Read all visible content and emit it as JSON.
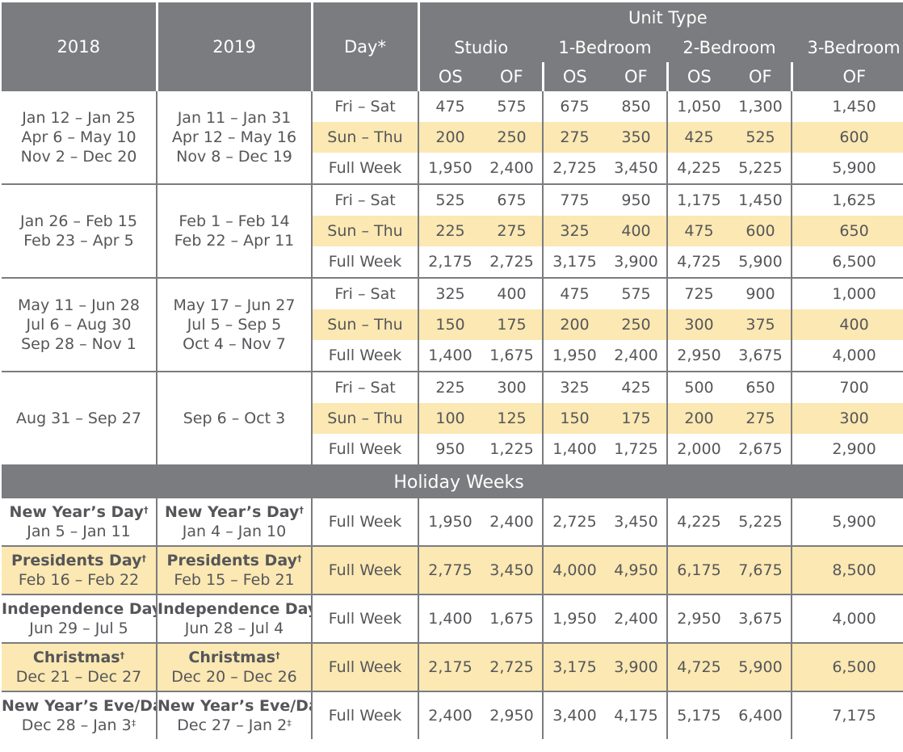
{
  "header": {
    "year_a": "2018",
    "year_b": "2019",
    "day": "Day*",
    "unit_type": "Unit Type",
    "units": [
      "Studio",
      "1-Bedroom",
      "2-Bedroom",
      "3-Bedroom"
    ],
    "sub": [
      "OS",
      "OF",
      "OS",
      "OF",
      "OS",
      "OF",
      "OF"
    ]
  },
  "seasons": [
    {
      "dates_2018": [
        "Jan 12 – Jan 25",
        "Apr 6 – May 10",
        "Nov 2 – Dec 20"
      ],
      "dates_2019": [
        "Jan 11 – Jan 31",
        "Apr 12 – May 16",
        "Nov 8 – Dec 19"
      ],
      "rows": [
        {
          "day": "Fri – Sat",
          "values": [
            "475",
            "575",
            "675",
            "850",
            "1,050",
            "1,300",
            "1,450"
          ]
        },
        {
          "day": "Sun – Thu",
          "values": [
            "200",
            "250",
            "275",
            "350",
            "425",
            "525",
            "600"
          ]
        },
        {
          "day": "Full Week",
          "values": [
            "1,950",
            "2,400",
            "2,725",
            "3,450",
            "4,225",
            "5,225",
            "5,900"
          ]
        }
      ]
    },
    {
      "dates_2018": [
        "Jan 26 – Feb 15",
        "Feb 23 – Apr 5"
      ],
      "dates_2019": [
        "Feb 1 – Feb 14",
        "Feb 22 – Apr 11"
      ],
      "rows": [
        {
          "day": "Fri – Sat",
          "values": [
            "525",
            "675",
            "775",
            "950",
            "1,175",
            "1,450",
            "1,625"
          ]
        },
        {
          "day": "Sun – Thu",
          "values": [
            "225",
            "275",
            "325",
            "400",
            "475",
            "600",
            "650"
          ]
        },
        {
          "day": "Full Week",
          "values": [
            "2,175",
            "2,725",
            "3,175",
            "3,900",
            "4,725",
            "5,900",
            "6,500"
          ]
        }
      ]
    },
    {
      "dates_2018": [
        "May 11 – Jun 28",
        "Jul 6 – Aug 30",
        "Sep 28 – Nov 1"
      ],
      "dates_2019": [
        "May 17 – Jun 27",
        "Jul 5 – Sep 5",
        "Oct 4 – Nov 7"
      ],
      "rows": [
        {
          "day": "Fri – Sat",
          "values": [
            "325",
            "400",
            "475",
            "575",
            "725",
            "900",
            "1,000"
          ]
        },
        {
          "day": "Sun – Thu",
          "values": [
            "150",
            "175",
            "200",
            "250",
            "300",
            "375",
            "400"
          ]
        },
        {
          "day": "Full Week",
          "values": [
            "1,400",
            "1,675",
            "1,950",
            "2,400",
            "2,950",
            "3,675",
            "4,000"
          ]
        }
      ]
    },
    {
      "dates_2018": [
        "Aug 31 – Sep 27"
      ],
      "dates_2019": [
        "Sep 6 – Oct 3"
      ],
      "rows": [
        {
          "day": "Fri – Sat",
          "values": [
            "225",
            "300",
            "325",
            "425",
            "500",
            "650",
            "700"
          ]
        },
        {
          "day": "Sun – Thu",
          "values": [
            "100",
            "125",
            "150",
            "175",
            "200",
            "275",
            "300"
          ]
        },
        {
          "day": "Full Week",
          "values": [
            "950",
            "1,225",
            "1,400",
            "1,725",
            "2,000",
            "2,675",
            "2,900"
          ]
        }
      ]
    }
  ],
  "holiday_title": "Holiday Weeks",
  "holidays": [
    {
      "name": "New Year’s Day",
      "mark": "†",
      "d2018": "Jan 5 – Jan 11",
      "d2018_mark": "",
      "d2019": "Jan 4 – Jan 10",
      "d2019_mark": "",
      "day": "Full Week",
      "values": [
        "1,950",
        "2,400",
        "2,725",
        "3,450",
        "4,225",
        "5,225",
        "5,900"
      ]
    },
    {
      "name": "Presidents Day",
      "mark": "†",
      "d2018": "Feb 16 – Feb 22",
      "d2018_mark": "",
      "d2019": "Feb 15 – Feb 21",
      "d2019_mark": "",
      "day": "Full Week",
      "values": [
        "2,775",
        "3,450",
        "4,000",
        "4,950",
        "6,175",
        "7,675",
        "8,500"
      ]
    },
    {
      "name": "Independence Day",
      "mark": "†",
      "d2018": "Jun 29 – Jul 5",
      "d2018_mark": "",
      "d2019": "Jun 28 – Jul 4",
      "d2019_mark": "",
      "day": "Full Week",
      "values": [
        "1,400",
        "1,675",
        "1,950",
        "2,400",
        "2,950",
        "3,675",
        "4,000"
      ]
    },
    {
      "name": "Christmas",
      "mark": "†",
      "d2018": "Dec 21 – Dec 27",
      "d2018_mark": "",
      "d2019": "Dec 20 – Dec 26",
      "d2019_mark": "",
      "day": "Full Week",
      "values": [
        "2,175",
        "2,725",
        "3,175",
        "3,900",
        "4,725",
        "5,900",
        "6,500"
      ]
    },
    {
      "name": "New Year’s Eve/Day",
      "mark": "†",
      "d2018": "Dec 28 – Jan 3",
      "d2018_mark": "‡",
      "d2019": "Dec 27 – Jan 2",
      "d2019_mark": "‡",
      "day": "Full Week",
      "values": [
        "2,400",
        "2,950",
        "3,400",
        "4,175",
        "5,175",
        "6,400",
        "7,175"
      ]
    }
  ]
}
